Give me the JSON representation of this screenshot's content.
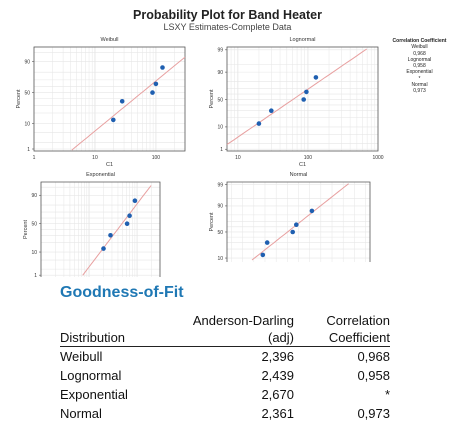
{
  "figure": {
    "title": "Probability Plot for Band Heater",
    "subtitle": "LSXY Estimates-Complete Data"
  },
  "correlation_legend": {
    "header": "Correlation Coefficient",
    "entries": [
      {
        "name": "Weibull",
        "value": "0,968"
      },
      {
        "name": "Lognormal",
        "value": "0,958"
      },
      {
        "name": "Exponential",
        "value": "*"
      },
      {
        "name": "Normal",
        "value": "0,973"
      }
    ]
  },
  "chart_data": [
    {
      "type": "scatter",
      "title": "Weibull",
      "xlabel": "C1",
      "ylabel": "Percent",
      "x_scale": "log",
      "x_ticks": [
        "1",
        "10",
        "100"
      ],
      "y_ticks": [
        "90",
        "50",
        "10",
        "1"
      ],
      "x": [
        20,
        28,
        88,
        100,
        128
      ],
      "y_percent": [
        13,
        36,
        50,
        64,
        85
      ],
      "fit_line": true,
      "grid": true
    },
    {
      "type": "scatter",
      "title": "Lognormal",
      "xlabel": "C1",
      "ylabel": "Percent",
      "x_scale": "log",
      "x_ticks": [
        "10",
        "100",
        "1000"
      ],
      "y_ticks": [
        "99",
        "90",
        "50",
        "10",
        "1"
      ],
      "x": [
        20,
        30,
        87,
        95,
        130
      ],
      "y_percent": [
        13,
        30,
        50,
        64,
        85
      ],
      "fit_line": true,
      "grid": true
    },
    {
      "type": "scatter",
      "title": "Exponential",
      "xlabel": "",
      "ylabel": "Percent",
      "x_scale": "log",
      "x_ticks": [],
      "y_ticks": [
        "90",
        "50",
        "10",
        "1"
      ],
      "x": [
        20,
        28,
        62,
        70,
        90
      ],
      "y_percent": [
        13,
        30,
        50,
        64,
        85
      ],
      "fit_line": true,
      "grid": true
    },
    {
      "type": "scatter",
      "title": "Normal",
      "xlabel": "",
      "ylabel": "Percent",
      "x_scale": "linear",
      "x_ticks": [],
      "y_ticks": [
        "99",
        "90",
        "50",
        "10"
      ],
      "x": [
        20,
        30,
        87,
        95,
        130
      ],
      "y_percent": [
        13,
        30,
        50,
        64,
        85
      ],
      "fit_line": true,
      "grid": true
    }
  ],
  "goodness_of_fit": {
    "title": "Goodness-of-Fit",
    "headers": {
      "distribution": "Distribution",
      "ad_line1": "Anderson-Darling",
      "ad_line2": "(adj)",
      "cc_line1": "Correlation",
      "cc_line2": "Coefficient"
    },
    "rows": [
      {
        "distribution": "Weibull",
        "ad": "2,396",
        "cc": "0,968"
      },
      {
        "distribution": "Lognormal",
        "ad": "2,439",
        "cc": "0,958"
      },
      {
        "distribution": "Exponential",
        "ad": "2,670",
        "cc": "*"
      },
      {
        "distribution": "Normal",
        "ad": "2,361",
        "cc": "0,973"
      }
    ]
  },
  "colors": {
    "point": "#1f5fb0",
    "fit_line": "#e8a0a0",
    "grid": "#e6e6e6",
    "accent": "#1f78b4"
  }
}
